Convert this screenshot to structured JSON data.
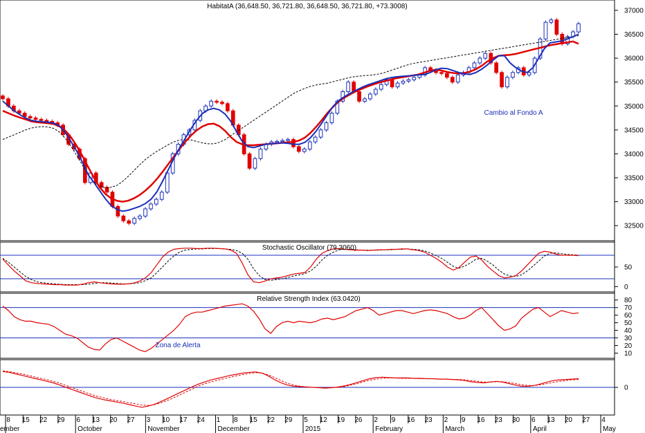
{
  "chart_data": [
    {
      "type": "candlestick",
      "title": "HabitatA (36,648.50, 36,721.80, 36,648.50, 36,721.80, +73.3008)",
      "y_ticks": [
        "37000",
        "36500",
        "36000",
        "35500",
        "35000",
        "34500",
        "34000",
        "33500",
        "33000",
        "32500"
      ],
      "ylim": [
        32300,
        37100
      ],
      "annotation": "Cambio al Fondo A",
      "close": [
        35150,
        35000,
        34900,
        34850,
        34780,
        34750,
        34720,
        34700,
        34680,
        34650,
        34600,
        34400,
        34200,
        34100,
        33900,
        33400,
        33600,
        33400,
        33300,
        33200,
        32900,
        32700,
        32600,
        32550,
        32650,
        32700,
        32850,
        32950,
        33050,
        33200,
        33600,
        34000,
        34200,
        34400,
        34500,
        34700,
        34900,
        35000,
        35100,
        35080,
        35050,
        34900,
        34600,
        34400,
        34000,
        33700,
        33900,
        34100,
        34200,
        34250,
        34260,
        34280,
        34300,
        34150,
        34050,
        34100,
        34250,
        34350,
        34500,
        34650,
        34850,
        35100,
        35300,
        35500,
        35300,
        35100,
        35150,
        35250,
        35350,
        35450,
        35550,
        35400,
        35480,
        35520,
        35550,
        35600,
        35650,
        35800,
        35750,
        35700,
        35680,
        35600,
        35500,
        35650,
        35700,
        35800,
        35900,
        36000,
        36100,
        35900,
        35700,
        35400,
        35600,
        35700,
        35800,
        35650,
        35700,
        36000,
        36400,
        36750,
        36800,
        36500,
        36300,
        36450,
        36550,
        36720
      ],
      "ma_blue": [
        35100,
        35000,
        34900,
        34820,
        34750,
        34700,
        34680,
        34670,
        34660,
        34640,
        34580,
        34440,
        34250,
        34050,
        33820,
        33560,
        33400,
        33230,
        33060,
        32920,
        32840,
        32800,
        32820,
        32860,
        32900,
        32960,
        33050,
        33200,
        33420,
        33660,
        33900,
        34120,
        34320,
        34520,
        34700,
        34840,
        34920,
        34950,
        34920,
        34830,
        34680,
        34470,
        34260,
        34150,
        34130,
        34160,
        34200,
        34210,
        34220,
        34230,
        34220,
        34200,
        34200,
        34240,
        34340,
        34480,
        34650,
        34830,
        35000,
        35120,
        35200,
        35270,
        35330,
        35390,
        35440,
        35480,
        35520,
        35560,
        35590,
        35610,
        35620,
        35630,
        35640,
        35650,
        35660,
        35700,
        35760,
        35790,
        35780,
        35740,
        35700,
        35670,
        35660,
        35700,
        35770,
        35860,
        35960,
        36050,
        36050,
        35900,
        35800,
        35730,
        35700,
        35800,
        36000,
        36200,
        36320,
        36340,
        36360,
        36400,
        36450,
        36500
      ],
      "ma_red": [
        34900,
        34850,
        34800,
        34760,
        34720,
        34680,
        34660,
        34650,
        34640,
        34620,
        34570,
        34480,
        34340,
        34160,
        33950,
        33720,
        33500,
        33300,
        33160,
        33070,
        33020,
        33000,
        33020,
        33070,
        33140,
        33230,
        33340,
        33470,
        33620,
        33780,
        33940,
        34100,
        34250,
        34380,
        34490,
        34570,
        34620,
        34630,
        34580,
        34480,
        34350,
        34250,
        34200,
        34180,
        34180,
        34190,
        34200,
        34210,
        34220,
        34230,
        34240,
        34250,
        34280,
        34340,
        34440,
        34570,
        34710,
        34860,
        34990,
        35100,
        35180,
        35250,
        35310,
        35360,
        35410,
        35450,
        35490,
        35520,
        35550,
        35580,
        35600,
        35620,
        35640,
        35660,
        35700,
        35740,
        35760,
        35740,
        35710,
        35690,
        35680,
        35690,
        35720,
        35770,
        35840,
        35930,
        36000,
        36050,
        36060,
        36070,
        36090,
        36120,
        36150,
        36180,
        36210,
        36240,
        36270,
        36290,
        36310,
        36330,
        36350,
        36300
      ],
      "ma_dash": [
        34300,
        34350,
        34400,
        34450,
        34500,
        34540,
        34560,
        34570,
        34560,
        34530,
        34450,
        34320,
        34150,
        33960,
        33760,
        33560,
        33410,
        33330,
        33290,
        33300,
        33340,
        33420,
        33530,
        33650,
        33770,
        33880,
        33970,
        34050,
        34120,
        34190,
        34250,
        34290,
        34300,
        34290,
        34260,
        34230,
        34210,
        34210,
        34240,
        34300,
        34380,
        34460,
        34540,
        34620,
        34700,
        34780,
        34860,
        34940,
        35020,
        35100,
        35180,
        35260,
        35320,
        35370,
        35410,
        35440,
        35460,
        35480,
        35510,
        35540,
        35570,
        35600,
        35620,
        35630,
        35640,
        35650,
        35670,
        35700,
        35740,
        35780,
        35820,
        35860,
        35890,
        35910,
        35930,
        35950,
        35970,
        35990,
        36010,
        36030,
        36050,
        36070,
        36090,
        36110,
        36130,
        36150,
        36170,
        36190,
        36210,
        36230,
        36250,
        36270,
        36290,
        36310,
        36330,
        36350,
        36370,
        36390,
        36410,
        36430,
        36450,
        36470
      ]
    },
    {
      "type": "line",
      "title": "Stochastic Oscillator (79.3060)",
      "y_ticks": [
        "50",
        "0"
      ],
      "ylim": [
        -10,
        110
      ],
      "reference_lines": [
        20,
        80
      ],
      "k": [
        70,
        55,
        40,
        28,
        15,
        10,
        8,
        7,
        6,
        5,
        5,
        4,
        4,
        4,
        6,
        10,
        12,
        10,
        8,
        7,
        6,
        6,
        7,
        9,
        14,
        22,
        35,
        55,
        75,
        88,
        95,
        97,
        98,
        98,
        97,
        97,
        98,
        98,
        97,
        96,
        93,
        85,
        60,
        30,
        12,
        10,
        14,
        20,
        22,
        24,
        28,
        32,
        34,
        36,
        50,
        70,
        85,
        92,
        96,
        97,
        95,
        94,
        93,
        93,
        92,
        93,
        94,
        94,
        95,
        95,
        96,
        96,
        94,
        92,
        88,
        80,
        72,
        62,
        50,
        42,
        48,
        62,
        75,
        78,
        68,
        52,
        40,
        28,
        22,
        24,
        28,
        40,
        55,
        70,
        85,
        90,
        88,
        83,
        80,
        80,
        80,
        79
      ],
      "d": [
        72,
        62,
        50,
        38,
        26,
        18,
        12,
        10,
        8,
        7,
        6,
        5,
        5,
        5,
        5,
        6,
        8,
        10,
        10,
        9,
        8,
        7,
        7,
        8,
        10,
        15,
        22,
        35,
        50,
        65,
        78,
        88,
        93,
        95,
        96,
        96,
        97,
        97,
        97,
        96,
        95,
        92,
        85,
        70,
        45,
        28,
        18,
        16,
        18,
        20,
        23,
        27,
        30,
        33,
        40,
        52,
        68,
        80,
        88,
        94,
        95,
        95,
        94,
        93,
        93,
        93,
        93,
        94,
        94,
        95,
        95,
        96,
        95,
        94,
        91,
        86,
        79,
        72,
        62,
        52,
        47,
        52,
        60,
        70,
        72,
        65,
        55,
        42,
        32,
        27,
        26,
        30,
        40,
        52,
        65,
        78,
        85,
        86,
        84,
        82,
        81,
        80
      ]
    },
    {
      "type": "line",
      "title": "Relative Strength Index (63.0420)",
      "annotation": "Zona de Alerta",
      "y_ticks": [
        "80",
        "70",
        "60",
        "50",
        "40",
        "30",
        "20",
        "10"
      ],
      "ylim": [
        5,
        87
      ],
      "reference_lines": [
        30,
        70
      ],
      "values": [
        72,
        66,
        58,
        54,
        52,
        52,
        50,
        49,
        48,
        45,
        40,
        35,
        33,
        30,
        24,
        18,
        15,
        14,
        22,
        28,
        30,
        26,
        22,
        18,
        14,
        12,
        16,
        22,
        28,
        34,
        40,
        48,
        58,
        62,
        64,
        64,
        66,
        68,
        70,
        72,
        73,
        74,
        75,
        72,
        65,
        55,
        42,
        36,
        45,
        50,
        52,
        50,
        52,
        51,
        50,
        52,
        55,
        56,
        54,
        56,
        58,
        62,
        66,
        68,
        70,
        66,
        60,
        62,
        64,
        66,
        66,
        64,
        62,
        64,
        66,
        67,
        66,
        64,
        62,
        58,
        55,
        56,
        60,
        66,
        70,
        62,
        54,
        46,
        40,
        42,
        46,
        56,
        62,
        68,
        70,
        64,
        58,
        62,
        66,
        64,
        62,
        63
      ]
    },
    {
      "type": "line",
      "title": "",
      "y_ticks": [
        "0"
      ],
      "ylim": [
        -7,
        7
      ],
      "solid": [
        4.2,
        4.0,
        3.6,
        3.2,
        2.8,
        2.4,
        2.0,
        1.6,
        1.2,
        0.6,
        0.0,
        -0.6,
        -1.2,
        -1.8,
        -2.4,
        -2.9,
        -3.3,
        -3.6,
        -3.9,
        -4.2,
        -4.6,
        -5.0,
        -5.3,
        -5.0,
        -4.5,
        -3.8,
        -3.0,
        -2.2,
        -1.4,
        -0.6,
        0.2,
        0.9,
        1.5,
        2.0,
        2.4,
        2.8,
        3.2,
        3.5,
        3.8,
        4.0,
        4.1,
        3.8,
        3.0,
        2.0,
        1.2,
        0.6,
        0.3,
        0.2,
        0.1,
        0.0,
        -0.1,
        -0.2,
        -0.1,
        0.1,
        0.4,
        0.8,
        1.3,
        1.8,
        2.3,
        2.6,
        2.7,
        2.6,
        2.5,
        2.5,
        2.5,
        2.4,
        2.4,
        2.3,
        2.3,
        2.2,
        2.2,
        2.1,
        2.0,
        1.8,
        1.5,
        1.3,
        1.2,
        1.4,
        1.6,
        1.4,
        1.0,
        0.6,
        0.3,
        0.3,
        0.5,
        0.9,
        1.4,
        1.8,
        2.0,
        2.1,
        2.2,
        2.3
      ],
      "dashed": [
        4.4,
        4.2,
        3.9,
        3.6,
        3.2,
        2.8,
        2.4,
        2.0,
        1.6,
        1.1,
        0.5,
        -0.1,
        -0.7,
        -1.3,
        -1.9,
        -2.4,
        -2.8,
        -3.2,
        -3.5,
        -3.8,
        -4.1,
        -4.4,
        -4.7,
        -4.8,
        -4.6,
        -4.1,
        -3.5,
        -2.8,
        -2.0,
        -1.2,
        -0.4,
        0.4,
        1.0,
        1.5,
        1.9,
        2.3,
        2.7,
        3.1,
        3.4,
        3.7,
        3.9,
        3.8,
        3.3,
        2.6,
        1.8,
        1.1,
        0.6,
        0.3,
        0.1,
        0.0,
        -0.1,
        -0.1,
        -0.1,
        0.0,
        0.2,
        0.6,
        1.0,
        1.5,
        1.9,
        2.2,
        2.4,
        2.5,
        2.5,
        2.4,
        2.4,
        2.4,
        2.3,
        2.3,
        2.3,
        2.2,
        2.2,
        2.1,
        2.1,
        2.0,
        1.8,
        1.6,
        1.4,
        1.4,
        1.5,
        1.5,
        1.3,
        1.0,
        0.7,
        0.5,
        0.5,
        0.7,
        1.0,
        1.3,
        1.6,
        1.8,
        2.0,
        2.1
      ]
    }
  ],
  "x_axis": {
    "day_labels": [
      "8",
      "15",
      "22",
      "29",
      "6",
      "13",
      "20",
      "27",
      "3",
      "10",
      "17",
      "24",
      "1",
      "8",
      "15",
      "22",
      "29",
      "5",
      "12",
      "19",
      "26",
      "2",
      "9",
      "16",
      "23",
      "2",
      "9",
      "16",
      "23",
      "30",
      "6",
      "13",
      "20",
      "27",
      "4"
    ],
    "month_labels": [
      "ember",
      "October",
      "November",
      "December",
      "2015",
      "February",
      "March",
      "April",
      "May"
    ]
  }
}
